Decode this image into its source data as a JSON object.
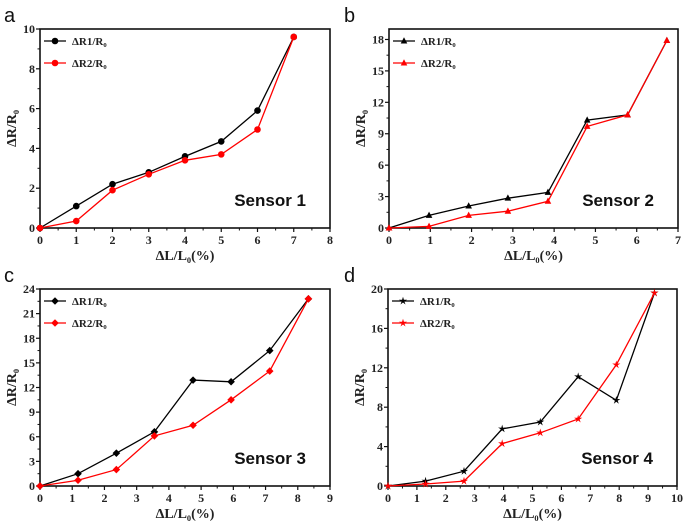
{
  "chart_data": [
    {
      "type": "line",
      "panel_label": "a",
      "annotation": "Sensor 1",
      "xlabel": "ΔL/L₀(%)",
      "ylabel": "ΔR/R₀",
      "xlim": [
        0,
        8
      ],
      "ylim": [
        0,
        10
      ],
      "xticks": [
        0,
        1,
        2,
        3,
        4,
        5,
        6,
        7,
        8
      ],
      "yticks": [
        0,
        2,
        4,
        6,
        8,
        10
      ],
      "marker": "circle",
      "legend": "top-left",
      "grid": false,
      "series": [
        {
          "name": "ΔR1/R₀",
          "color": "#000000",
          "x": [
            0,
            1,
            2,
            3,
            4,
            5,
            6,
            7
          ],
          "y": [
            0,
            1.1,
            2.2,
            2.8,
            3.6,
            4.35,
            5.9,
            9.6
          ]
        },
        {
          "name": "ΔR2/R₀",
          "color": "#ff0000",
          "x": [
            0,
            1,
            2,
            3,
            4,
            5,
            6,
            7
          ],
          "y": [
            0,
            0.35,
            1.9,
            2.7,
            3.4,
            3.7,
            4.95,
            9.6
          ]
        }
      ]
    },
    {
      "type": "line",
      "panel_label": "b",
      "annotation": "Sensor 2",
      "xlabel": "ΔL/L₀(%)",
      "ylabel": "ΔR/R₀",
      "xlim": [
        0,
        7
      ],
      "ylim": [
        0,
        19
      ],
      "xticks": [
        0,
        1,
        2,
        3,
        4,
        5,
        6,
        7
      ],
      "yticks": [
        0,
        3,
        6,
        9,
        12,
        15,
        18
      ],
      "marker": "triangle",
      "legend": "top-left",
      "grid": false,
      "series": [
        {
          "name": "ΔR1/R₀",
          "color": "#000000",
          "x": [
            0,
            0.97,
            1.93,
            2.88,
            3.85,
            4.8,
            5.78,
            6.73
          ],
          "y": [
            0,
            1.2,
            2.1,
            2.85,
            3.4,
            10.3,
            10.8,
            17.9
          ]
        },
        {
          "name": "ΔR2/R₀",
          "color": "#ff0000",
          "x": [
            0,
            0.97,
            1.93,
            2.88,
            3.85,
            4.8,
            5.78,
            6.73
          ],
          "y": [
            0,
            0.15,
            1.2,
            1.6,
            2.55,
            9.7,
            10.8,
            17.9
          ]
        }
      ]
    },
    {
      "type": "line",
      "panel_label": "c",
      "annotation": "Sensor 3",
      "xlabel": "ΔL/L₀(%)",
      "ylabel": "ΔR/R₀",
      "xlim": [
        0,
        9
      ],
      "ylim": [
        0,
        24
      ],
      "xticks": [
        0,
        1,
        2,
        3,
        4,
        5,
        6,
        7,
        8,
        9
      ],
      "yticks": [
        0,
        3,
        6,
        9,
        12,
        15,
        18,
        21,
        24
      ],
      "marker": "diamond",
      "legend": "top-left",
      "grid": false,
      "series": [
        {
          "name": "ΔR1/R₀",
          "color": "#000000",
          "x": [
            0,
            1.18,
            2.37,
            3.55,
            4.75,
            5.93,
            7.13,
            8.33
          ],
          "y": [
            0,
            1.5,
            4.0,
            6.6,
            12.9,
            12.7,
            16.5,
            22.8
          ]
        },
        {
          "name": "ΔR2/R₀",
          "color": "#ff0000",
          "x": [
            0,
            1.18,
            2.37,
            3.55,
            4.75,
            5.93,
            7.13,
            8.33
          ],
          "y": [
            0,
            0.7,
            2.0,
            6.1,
            7.4,
            10.5,
            14.0,
            22.8
          ]
        }
      ]
    },
    {
      "type": "line",
      "panel_label": "d",
      "annotation": "Sensor 4",
      "xlabel": "ΔL/L₀(%)",
      "ylabel": "ΔR/R₀",
      "xlim": [
        0,
        10
      ],
      "ylim": [
        0,
        20
      ],
      "xticks": [
        0,
        1,
        2,
        3,
        4,
        5,
        6,
        7,
        8,
        9,
        10
      ],
      "yticks": [
        0,
        4,
        8,
        12,
        16,
        20
      ],
      "marker": "star",
      "legend": "top-left",
      "grid": false,
      "series": [
        {
          "name": "ΔR1/R₀",
          "color": "#000000",
          "x": [
            0,
            1.3,
            2.63,
            3.95,
            5.27,
            6.58,
            7.9,
            9.22
          ],
          "y": [
            0,
            0.5,
            1.5,
            5.8,
            6.5,
            11.1,
            8.7,
            19.6
          ]
        },
        {
          "name": "ΔR2/R₀",
          "color": "#ff0000",
          "x": [
            0,
            1.3,
            2.63,
            3.95,
            5.27,
            6.58,
            7.9,
            9.22
          ],
          "y": [
            0,
            0.2,
            0.5,
            4.3,
            5.4,
            6.8,
            12.3,
            19.6
          ]
        }
      ]
    }
  ]
}
